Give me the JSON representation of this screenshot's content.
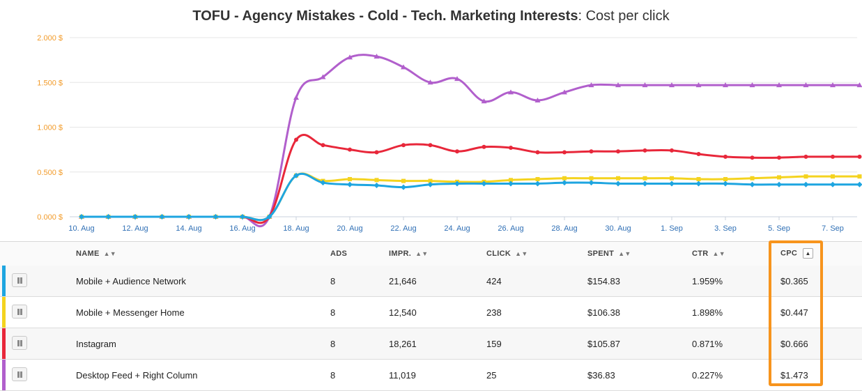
{
  "chart_data": {
    "type": "line",
    "title_bold": "TOFU - Agency Mistakes - Cold - Tech. Marketing Interests",
    "title_rest": ": Cost per click",
    "y_ticks": [
      "0.000 $",
      "0.500 $",
      "1.000 $",
      "1.500 $",
      "2.000 $"
    ],
    "ylim": [
      0,
      2
    ],
    "x_ticks": [
      "10. Aug",
      "12. Aug",
      "14. Aug",
      "16. Aug",
      "18. Aug",
      "20. Aug",
      "22. Aug",
      "24. Aug",
      "26. Aug",
      "28. Aug",
      "30. Aug",
      "1. Sep",
      "3. Sep",
      "5. Sep",
      "7. Sep"
    ],
    "x": [
      "10. Aug",
      "11. Aug",
      "12. Aug",
      "13. Aug",
      "14. Aug",
      "15. Aug",
      "16. Aug",
      "17. Aug",
      "18. Aug",
      "19. Aug",
      "20. Aug",
      "21. Aug",
      "22. Aug",
      "23. Aug",
      "24. Aug",
      "25. Aug",
      "26. Aug",
      "27. Aug",
      "28. Aug",
      "29. Aug",
      "30. Aug",
      "31. Aug",
      "1. Sep",
      "2. Sep",
      "3. Sep",
      "4. Sep",
      "5. Sep",
      "6. Sep",
      "7. Sep",
      "8. Sep"
    ],
    "grid": "horizontal",
    "series": [
      {
        "color": "#b15fcc",
        "marker": "triangle",
        "values": [
          0,
          0,
          0,
          0,
          0,
          0,
          0,
          0,
          1.33,
          1.56,
          1.78,
          1.79,
          1.67,
          1.5,
          1.54,
          1.29,
          1.39,
          1.3,
          1.39,
          1.47,
          1.47,
          1.47,
          1.47,
          1.47,
          1.47,
          1.47,
          1.47,
          1.47,
          1.47,
          1.47
        ]
      },
      {
        "color": "#e8273a",
        "marker": "circle",
        "values": [
          0,
          0,
          0,
          0,
          0,
          0,
          0,
          0,
          0.86,
          0.8,
          0.75,
          0.72,
          0.8,
          0.8,
          0.73,
          0.78,
          0.77,
          0.72,
          0.72,
          0.73,
          0.73,
          0.74,
          0.74,
          0.7,
          0.67,
          0.66,
          0.66,
          0.67,
          0.67,
          0.67
        ]
      },
      {
        "color": "#f4d31f",
        "marker": "square",
        "values": [
          0,
          0,
          0,
          0,
          0,
          0,
          0,
          0,
          0.46,
          0.4,
          0.42,
          0.41,
          0.4,
          0.4,
          0.39,
          0.39,
          0.41,
          0.42,
          0.43,
          0.43,
          0.43,
          0.43,
          0.43,
          0.42,
          0.42,
          0.43,
          0.44,
          0.45,
          0.45,
          0.45
        ]
      },
      {
        "color": "#1ea5e0",
        "marker": "diamond",
        "values": [
          0,
          0,
          0,
          0,
          0,
          0,
          0,
          0,
          0.46,
          0.38,
          0.36,
          0.35,
          0.33,
          0.36,
          0.37,
          0.37,
          0.37,
          0.37,
          0.38,
          0.38,
          0.37,
          0.37,
          0.37,
          0.37,
          0.37,
          0.36,
          0.36,
          0.36,
          0.36,
          0.36
        ]
      }
    ]
  },
  "table": {
    "headers": {
      "name": "NAME",
      "ads": "ADS",
      "impr": "IMPR.",
      "click": "CLICK",
      "spent": "SPENT",
      "ctr": "CTR",
      "cpc": "CPC"
    },
    "sort_icon": "sort-both-icon",
    "rows": [
      {
        "color": "#1ea5e0",
        "name": "Mobile + Audience Network",
        "ads": "8",
        "impr": "21,646",
        "click": "424",
        "spent": "$154.83",
        "ctr": "1.959%",
        "cpc": "$0.365"
      },
      {
        "color": "#f4d31f",
        "name": "Mobile + Messenger Home",
        "ads": "8",
        "impr": "12,540",
        "click": "238",
        "spent": "$106.38",
        "ctr": "1.898%",
        "cpc": "$0.447"
      },
      {
        "color": "#e8273a",
        "name": "Instagram",
        "ads": "8",
        "impr": "18,261",
        "click": "159",
        "spent": "$105.87",
        "ctr": "0.871%",
        "cpc": "$0.666"
      },
      {
        "color": "#b15fcc",
        "name": "Desktop Feed + Right Column",
        "ads": "8",
        "impr": "11,019",
        "click": "25",
        "spent": "$36.83",
        "ctr": "0.227%",
        "cpc": "$1.473"
      }
    ]
  },
  "highlight_color": "#f7941d"
}
